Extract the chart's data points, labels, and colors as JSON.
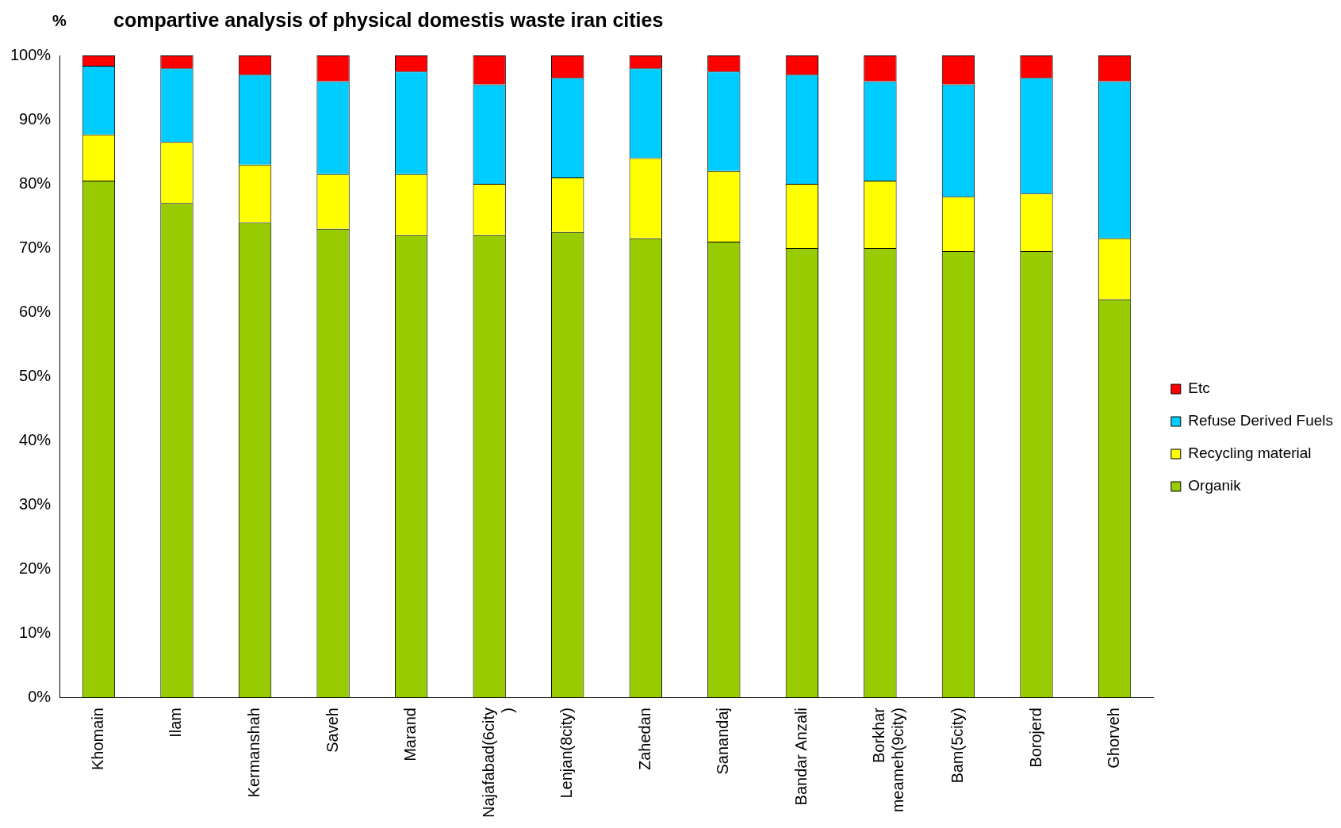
{
  "chart_data": {
    "type": "bar",
    "stacked": true,
    "title": "compartive analysis of physical domestis waste iran cities",
    "ylabel": "%",
    "categories": [
      "Khomain",
      "Ilam",
      "Kermanshah",
      "Saveh",
      "Marand",
      "Najafabad(6city)",
      "Lenjan(8city)",
      "Zahedan",
      "Sanandaj",
      "Bandar Anzali",
      "Borkhar meameh(9city)",
      "Bam(5city)",
      "Borojerd",
      "Ghorveh"
    ],
    "series": [
      {
        "name": "Organik",
        "color": "#99cc00",
        "values": [
          80.5,
          77,
          74,
          73,
          72,
          72,
          72.5,
          71.5,
          71,
          70,
          70,
          69.5,
          69.5,
          62
        ]
      },
      {
        "name": "Recycling material",
        "color": "#ffff00",
        "values": [
          7.2,
          9.5,
          9,
          8.5,
          9.5,
          8,
          8.5,
          12.5,
          11,
          10,
          10.5,
          8.5,
          9,
          9.5
        ]
      },
      {
        "name": "Refuse Derived Fuels",
        "color": "#00ccff",
        "values": [
          10.7,
          11.5,
          14,
          14.5,
          16,
          15.5,
          15.5,
          14,
          15.5,
          17,
          15.5,
          17.5,
          18,
          24.5
        ]
      },
      {
        "name": "Etc",
        "color": "#ff0000",
        "values": [
          1.6,
          2,
          3,
          4,
          2.5,
          4.5,
          3.5,
          2,
          2.5,
          3,
          4,
          4.5,
          3.5,
          4
        ]
      }
    ],
    "ylim": [
      0,
      100
    ],
    "yticks": [
      {
        "value": 0,
        "label": "0%"
      },
      {
        "value": 10,
        "label": "10%"
      },
      {
        "value": 20,
        "label": "20%"
      },
      {
        "value": 30,
        "label": "30%"
      },
      {
        "value": 40,
        "label": "40%"
      },
      {
        "value": 50,
        "label": "50%"
      },
      {
        "value": 60,
        "label": "60%"
      },
      {
        "value": 70,
        "label": "70%"
      },
      {
        "value": 80,
        "label": "80%"
      },
      {
        "value": 90,
        "label": "90%"
      },
      {
        "value": 100,
        "label": "100%"
      }
    ],
    "grid": false,
    "legend": "right"
  }
}
